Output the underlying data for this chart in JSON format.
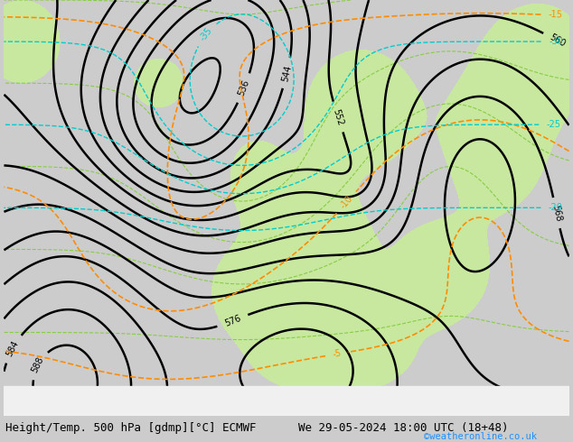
{
  "title_left": "Height/Temp. 500 hPa [gdmp][°C] ECMWF",
  "title_right": "We 29-05-2024 18:00 UTC (18+48)",
  "watermark": "©weatheronline.co.uk",
  "bg_color": "#cccccc",
  "land_color": "#c8e8a0",
  "z500_color": "#000000",
  "temp_color": "#ff8c00",
  "cyan_color": "#00cccc",
  "green_dash_color": "#88cc44",
  "label_fontsize": 7.5,
  "title_fontsize": 9,
  "watermark_color": "#1e90ff"
}
